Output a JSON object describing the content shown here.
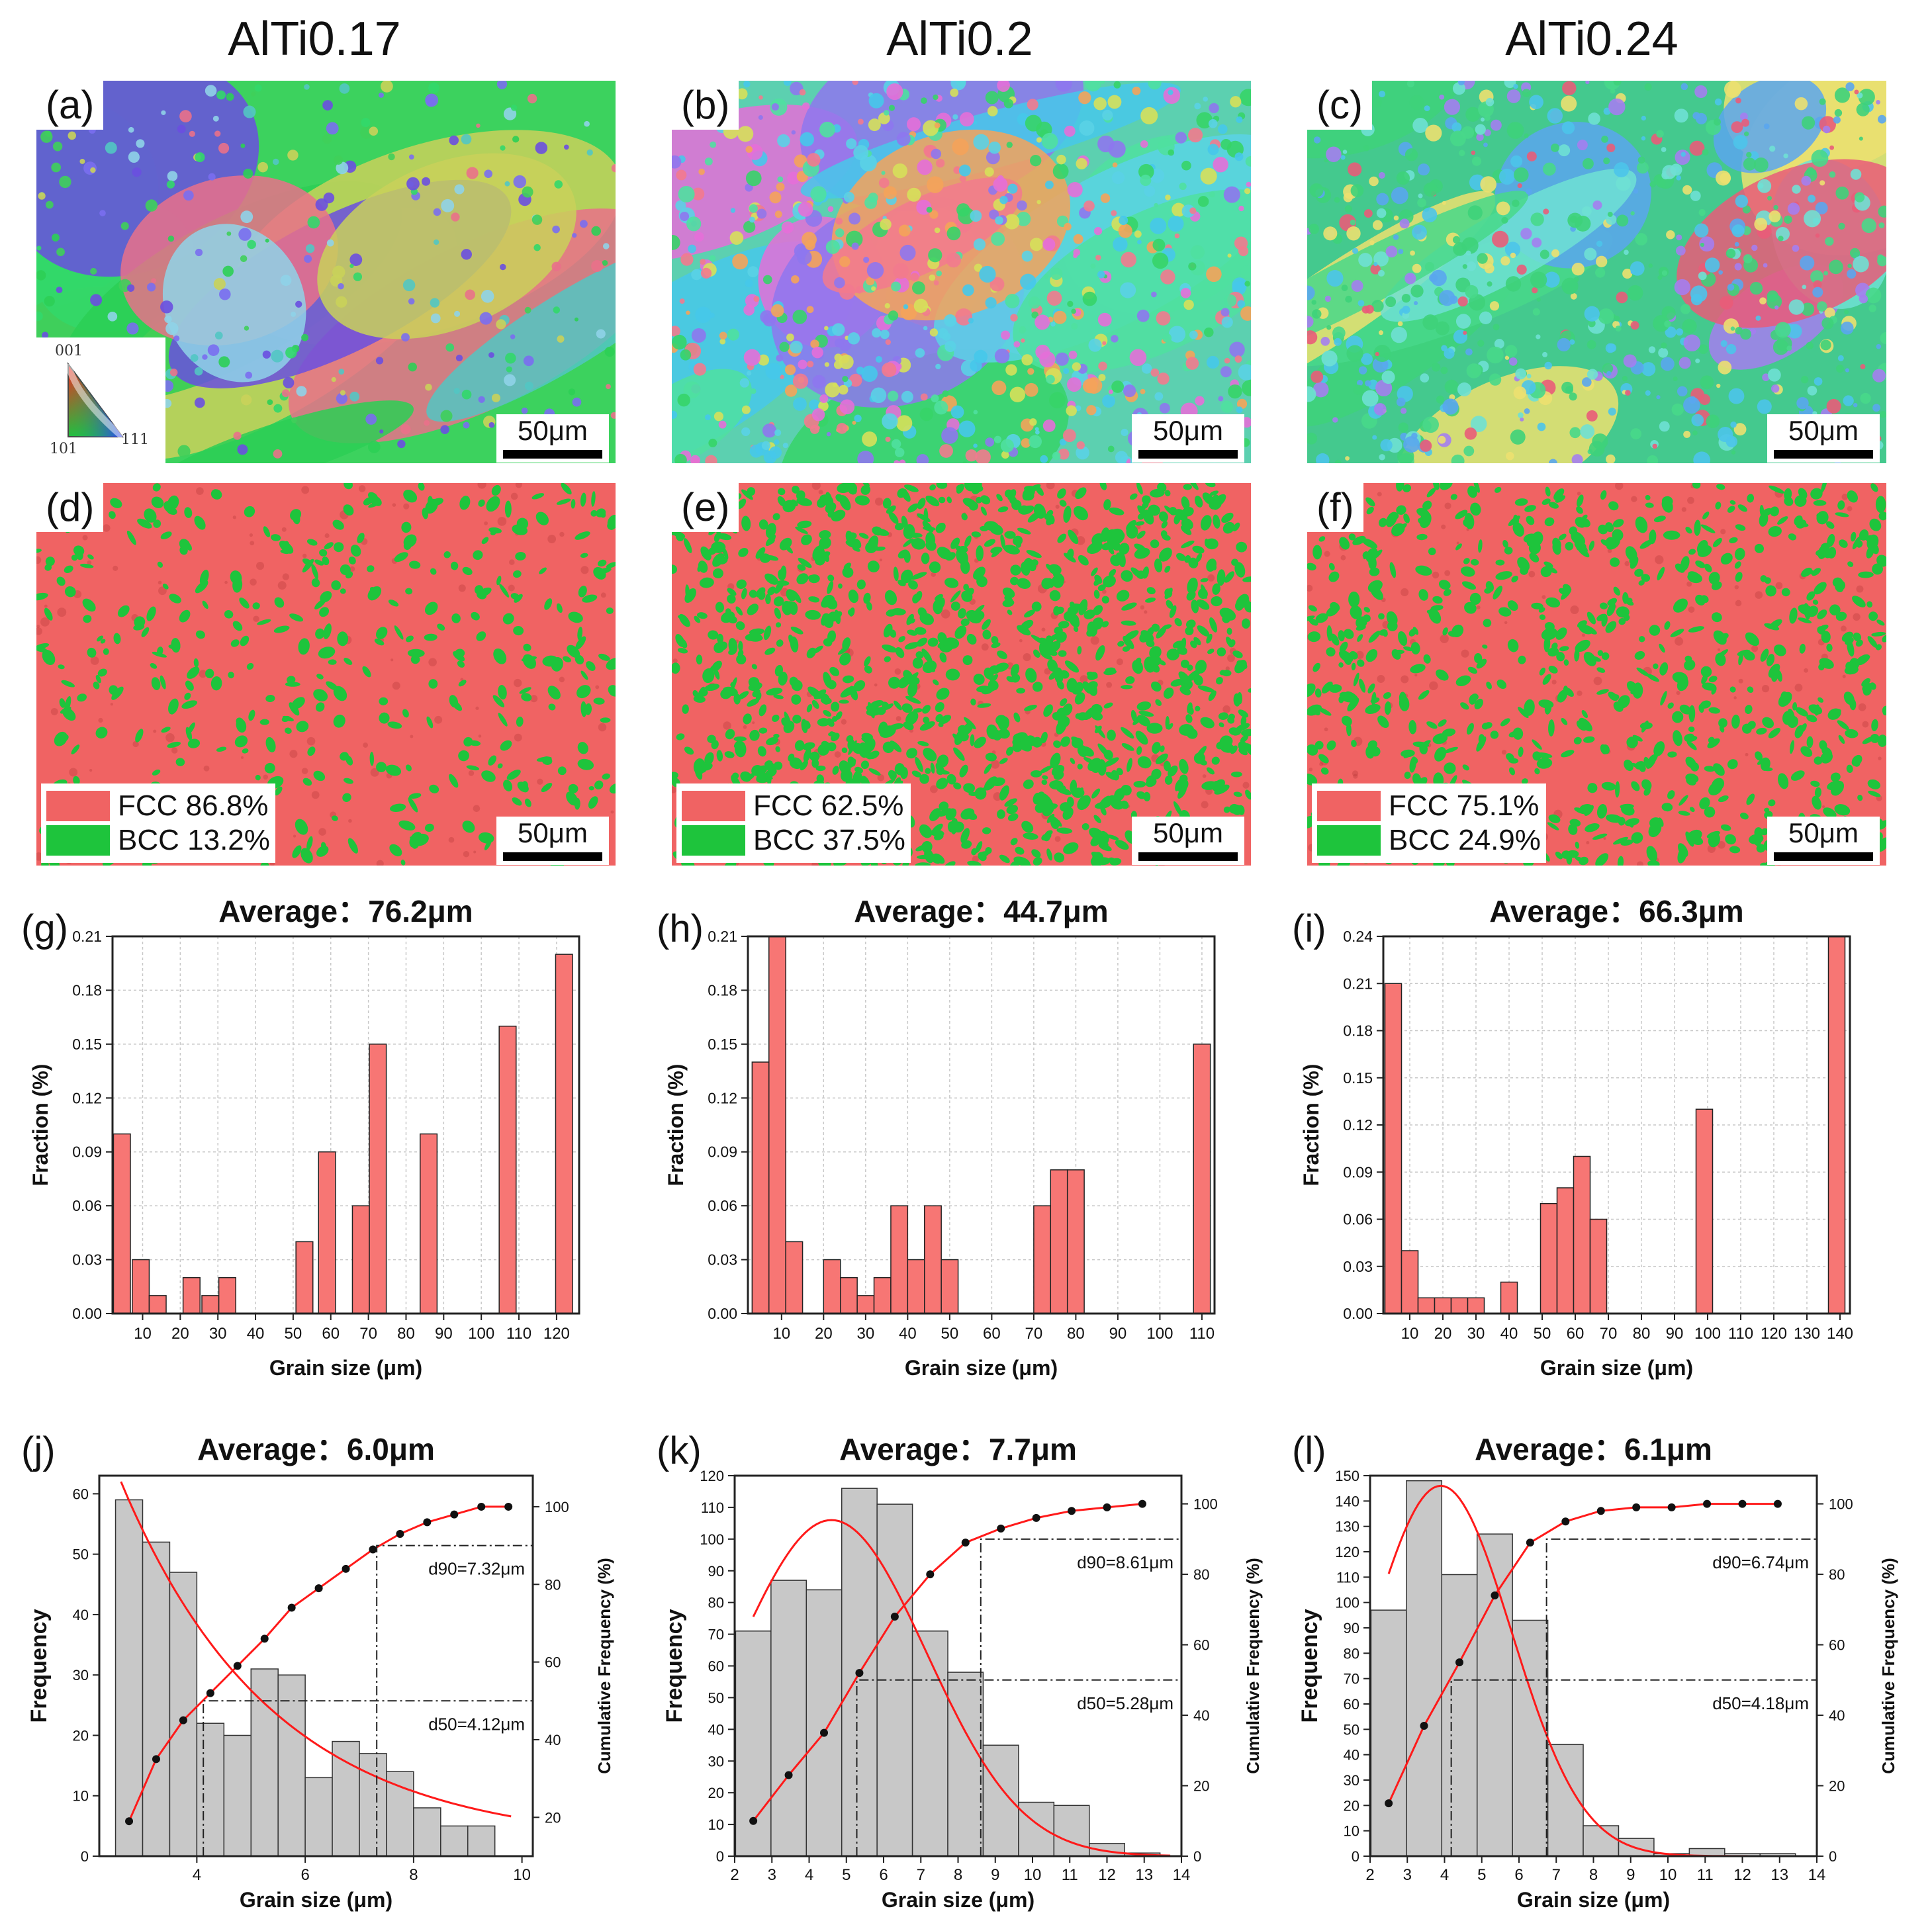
{
  "columns": [
    {
      "title": "AlTi0.17",
      "ipf_label": "(a)",
      "phase_label": "(d)",
      "fcc": "FCC 86.8%",
      "bcc": "BCC 13.2%",
      "hist_label": "(g)",
      "dist_label": "(j)"
    },
    {
      "title": "AlTi0.2",
      "ipf_label": "(b)",
      "phase_label": "(e)",
      "fcc": "FCC 62.5%",
      "bcc": "BCC 37.5%",
      "hist_label": "(h)",
      "dist_label": "(k)"
    },
    {
      "title": "AlTi0.24",
      "ipf_label": "(c)",
      "phase_label": "(f)",
      "fcc": "FCC 75.1%",
      "bcc": "BCC 24.9%",
      "hist_label": "(i)",
      "dist_label": "(l)"
    }
  ],
  "scale_bar": "50μm",
  "ipf_key": {
    "top": "001",
    "left": "101",
    "right": "111"
  },
  "colors": {
    "fcc": "#f06363",
    "bcc": "#1ec43c",
    "bar_red": "#f77674",
    "bar_gray": "#c8c8c8",
    "fit": "#ff1a1a"
  },
  "chart_data": [
    {
      "type": "bar",
      "id": "g",
      "title": "Average：76.2μm",
      "xlabel": "Grain size (μm)",
      "ylabel": "Fraction (%)",
      "xlim": [
        2,
        126
      ],
      "ylim": [
        0,
        0.21
      ],
      "xticks": [
        10,
        20,
        30,
        40,
        50,
        60,
        70,
        80,
        90,
        100,
        110,
        120
      ],
      "yticks": [
        "0.00",
        "0.03",
        "0.06",
        "0.09",
        "0.12",
        "0.15",
        "0.18",
        "0.21"
      ],
      "bars": [
        {
          "x": 4.5,
          "w": 4.5,
          "v": 0.1
        },
        {
          "x": 9.5,
          "w": 4.5,
          "v": 0.03
        },
        {
          "x": 14,
          "w": 4.5,
          "v": 0.01
        },
        {
          "x": 23,
          "w": 4.5,
          "v": 0.02
        },
        {
          "x": 28,
          "w": 4.5,
          "v": 0.01
        },
        {
          "x": 32.5,
          "w": 4.5,
          "v": 0.02
        },
        {
          "x": 53,
          "w": 4.5,
          "v": 0.04
        },
        {
          "x": 59,
          "w": 4.5,
          "v": 0.09
        },
        {
          "x": 68,
          "w": 4.5,
          "v": 0.06
        },
        {
          "x": 72.5,
          "w": 4.5,
          "v": 0.15
        },
        {
          "x": 86,
          "w": 4.5,
          "v": 0.1
        },
        {
          "x": 107,
          "w": 4.5,
          "v": 0.16
        },
        {
          "x": 122,
          "w": 4.5,
          "v": 0.2
        }
      ]
    },
    {
      "type": "bar",
      "id": "h",
      "title": "Average：44.7μm",
      "xlabel": "Grain size (μm)",
      "ylabel": "Fraction (%)",
      "xlim": [
        2,
        113
      ],
      "ylim": [
        0,
        0.21
      ],
      "xticks": [
        10,
        20,
        30,
        40,
        50,
        60,
        70,
        80,
        90,
        100,
        110
      ],
      "yticks": [
        "0.00",
        "0.03",
        "0.06",
        "0.09",
        "0.12",
        "0.15",
        "0.18",
        "0.21"
      ],
      "bars": [
        {
          "x": 5,
          "w": 4,
          "v": 0.14
        },
        {
          "x": 9,
          "w": 4,
          "v": 0.21
        },
        {
          "x": 13,
          "w": 4,
          "v": 0.04
        },
        {
          "x": 22,
          "w": 4,
          "v": 0.03
        },
        {
          "x": 26,
          "w": 4,
          "v": 0.02
        },
        {
          "x": 30,
          "w": 4,
          "v": 0.01
        },
        {
          "x": 34,
          "w": 4,
          "v": 0.02
        },
        {
          "x": 38,
          "w": 4,
          "v": 0.06
        },
        {
          "x": 42,
          "w": 4,
          "v": 0.03
        },
        {
          "x": 46,
          "w": 4,
          "v": 0.06
        },
        {
          "x": 50,
          "w": 4,
          "v": 0.03
        },
        {
          "x": 72,
          "w": 4,
          "v": 0.06
        },
        {
          "x": 76,
          "w": 4,
          "v": 0.08
        },
        {
          "x": 80,
          "w": 4,
          "v": 0.08
        },
        {
          "x": 110,
          "w": 4,
          "v": 0.15
        }
      ]
    },
    {
      "type": "bar",
      "id": "i",
      "title": "Average：66.3μm",
      "xlabel": "Grain size (μm)",
      "ylabel": "Fraction (%)",
      "xlim": [
        2,
        143
      ],
      "ylim": [
        0,
        0.24
      ],
      "xticks": [
        10,
        20,
        30,
        40,
        50,
        60,
        70,
        80,
        90,
        100,
        110,
        120,
        130,
        140
      ],
      "yticks": [
        "0.00",
        "0.03",
        "0.06",
        "0.09",
        "0.12",
        "0.15",
        "0.18",
        "0.21",
        "0.24"
      ],
      "bars": [
        {
          "x": 5,
          "w": 5,
          "v": 0.21
        },
        {
          "x": 10,
          "w": 5,
          "v": 0.04
        },
        {
          "x": 15,
          "w": 5,
          "v": 0.01
        },
        {
          "x": 20,
          "w": 5,
          "v": 0.01
        },
        {
          "x": 25,
          "w": 5,
          "v": 0.01
        },
        {
          "x": 30,
          "w": 5,
          "v": 0.01
        },
        {
          "x": 40,
          "w": 5,
          "v": 0.02
        },
        {
          "x": 52,
          "w": 5,
          "v": 0.07
        },
        {
          "x": 57,
          "w": 5,
          "v": 0.08
        },
        {
          "x": 62,
          "w": 5,
          "v": 0.1
        },
        {
          "x": 67,
          "w": 5,
          "v": 0.06
        },
        {
          "x": 99,
          "w": 5,
          "v": 0.13
        },
        {
          "x": 139,
          "w": 5,
          "v": 0.24
        }
      ]
    },
    {
      "type": "bar+line",
      "id": "j",
      "title": "Average：6.0μm",
      "xlabel": "Grain size (μm)",
      "ylabel": "Frequency",
      "y2label": "Cumulative Frequency (%)",
      "xlim": [
        2.2,
        10.2
      ],
      "ylim": [
        0,
        63
      ],
      "y2lim": [
        10,
        108
      ],
      "xticks": [
        4,
        6,
        8,
        10
      ],
      "yticks": [
        0,
        10,
        20,
        30,
        40,
        50,
        60
      ],
      "y2ticks": [
        20,
        40,
        60,
        80,
        100
      ],
      "bin_width": 0.5,
      "bars": [
        {
          "x": 2.75,
          "v": 59
        },
        {
          "x": 3.25,
          "v": 52
        },
        {
          "x": 3.75,
          "v": 47
        },
        {
          "x": 4.25,
          "v": 22
        },
        {
          "x": 4.75,
          "v": 20
        },
        {
          "x": 5.25,
          "v": 31
        },
        {
          "x": 5.75,
          "v": 30
        },
        {
          "x": 6.25,
          "v": 13
        },
        {
          "x": 6.75,
          "v": 19
        },
        {
          "x": 7.25,
          "v": 17
        },
        {
          "x": 7.75,
          "v": 14
        },
        {
          "x": 8.25,
          "v": 8
        },
        {
          "x": 8.75,
          "v": 5
        },
        {
          "x": 9.25,
          "v": 5
        }
      ],
      "cum_points": [
        [
          2.75,
          19
        ],
        [
          3.25,
          35
        ],
        [
          3.75,
          45
        ],
        [
          4.25,
          52
        ],
        [
          4.75,
          59
        ],
        [
          5.25,
          66
        ],
        [
          5.75,
          74
        ],
        [
          6.25,
          79
        ],
        [
          6.75,
          84
        ],
        [
          7.25,
          89
        ],
        [
          7.75,
          93
        ],
        [
          8.25,
          96
        ],
        [
          8.75,
          98
        ],
        [
          9.25,
          100
        ],
        [
          9.75,
          100
        ]
      ],
      "d90": 7.32,
      "d50": 4.12,
      "d90_label": "d90=7.32μm",
      "d50_label": "d50=4.12μm",
      "dist": "decay"
    },
    {
      "type": "bar+line",
      "id": "k",
      "title": "Average：7.7μm",
      "xlabel": "Grain size (μm)",
      "ylabel": "Frequency",
      "y2label": "Cumulative Frequency (%)",
      "xlim": [
        2,
        14
      ],
      "ylim": [
        0,
        120
      ],
      "y2lim": [
        0,
        108
      ],
      "xticks": [
        2,
        3,
        4,
        5,
        6,
        7,
        8,
        9,
        10,
        11,
        12,
        13,
        14
      ],
      "yticks": [
        0,
        10,
        20,
        30,
        40,
        50,
        60,
        70,
        80,
        90,
        100,
        110,
        120
      ],
      "y2ticks": [
        0,
        20,
        40,
        60,
        80,
        100
      ],
      "bin_width": 0.95,
      "bars": [
        {
          "x": 2.5,
          "v": 71
        },
        {
          "x": 3.45,
          "v": 87
        },
        {
          "x": 4.4,
          "v": 84
        },
        {
          "x": 5.35,
          "v": 116
        },
        {
          "x": 6.3,
          "v": 111
        },
        {
          "x": 7.25,
          "v": 71
        },
        {
          "x": 8.2,
          "v": 58
        },
        {
          "x": 9.15,
          "v": 35
        },
        {
          "x": 10.1,
          "v": 17
        },
        {
          "x": 11.05,
          "v": 16
        },
        {
          "x": 12,
          "v": 4
        },
        {
          "x": 12.95,
          "v": 1
        }
      ],
      "cum_points": [
        [
          2.5,
          10
        ],
        [
          3.45,
          23
        ],
        [
          4.4,
          35
        ],
        [
          5.35,
          52
        ],
        [
          6.3,
          68
        ],
        [
          7.25,
          80
        ],
        [
          8.2,
          89
        ],
        [
          9.15,
          93
        ],
        [
          10.1,
          96
        ],
        [
          11.05,
          98
        ],
        [
          12,
          99
        ],
        [
          12.95,
          100
        ]
      ],
      "d90": 8.61,
      "d50": 5.28,
      "d90_label": "d90=8.61μm",
      "d50_label": "d50=5.28μm",
      "dist": "bell",
      "peak": 4.6,
      "peakv": 106,
      "sigma": 2.55
    },
    {
      "type": "bar+line",
      "id": "l",
      "title": "Average：6.1μm",
      "xlabel": "Grain size (μm)",
      "ylabel": "Frequency",
      "y2label": "Cumulative Frequency (%)",
      "xlim": [
        2,
        14
      ],
      "ylim": [
        0,
        150
      ],
      "y2lim": [
        0,
        108
      ],
      "xticks": [
        2,
        3,
        4,
        5,
        6,
        7,
        8,
        9,
        10,
        11,
        12,
        13,
        14
      ],
      "yticks": [
        0,
        10,
        20,
        30,
        40,
        50,
        60,
        70,
        80,
        90,
        100,
        110,
        120,
        130,
        140,
        150
      ],
      "y2ticks": [
        0,
        20,
        40,
        60,
        80,
        100
      ],
      "bin_width": 0.95,
      "bars": [
        {
          "x": 2.5,
          "v": 97
        },
        {
          "x": 3.45,
          "v": 148
        },
        {
          "x": 4.4,
          "v": 111
        },
        {
          "x": 5.35,
          "v": 127
        },
        {
          "x": 6.3,
          "v": 93
        },
        {
          "x": 7.25,
          "v": 44
        },
        {
          "x": 8.2,
          "v": 12
        },
        {
          "x": 9.15,
          "v": 7
        },
        {
          "x": 10.1,
          "v": 1
        },
        {
          "x": 11.05,
          "v": 3
        },
        {
          "x": 12,
          "v": 1
        },
        {
          "x": 12.95,
          "v": 1
        }
      ],
      "cum_points": [
        [
          2.5,
          15
        ],
        [
          3.45,
          37
        ],
        [
          4.4,
          55
        ],
        [
          5.35,
          74
        ],
        [
          6.3,
          89
        ],
        [
          7.25,
          95
        ],
        [
          8.2,
          98
        ],
        [
          9.15,
          99
        ],
        [
          10.1,
          99
        ],
        [
          11.05,
          100
        ],
        [
          12,
          100
        ],
        [
          12.95,
          100
        ]
      ],
      "d90": 6.74,
      "d50": 4.18,
      "d90_label": "d90=6.74μm",
      "d50_label": "d50=4.18μm",
      "dist": "bell",
      "peak": 3.9,
      "peakv": 146,
      "sigma": 1.9
    }
  ]
}
